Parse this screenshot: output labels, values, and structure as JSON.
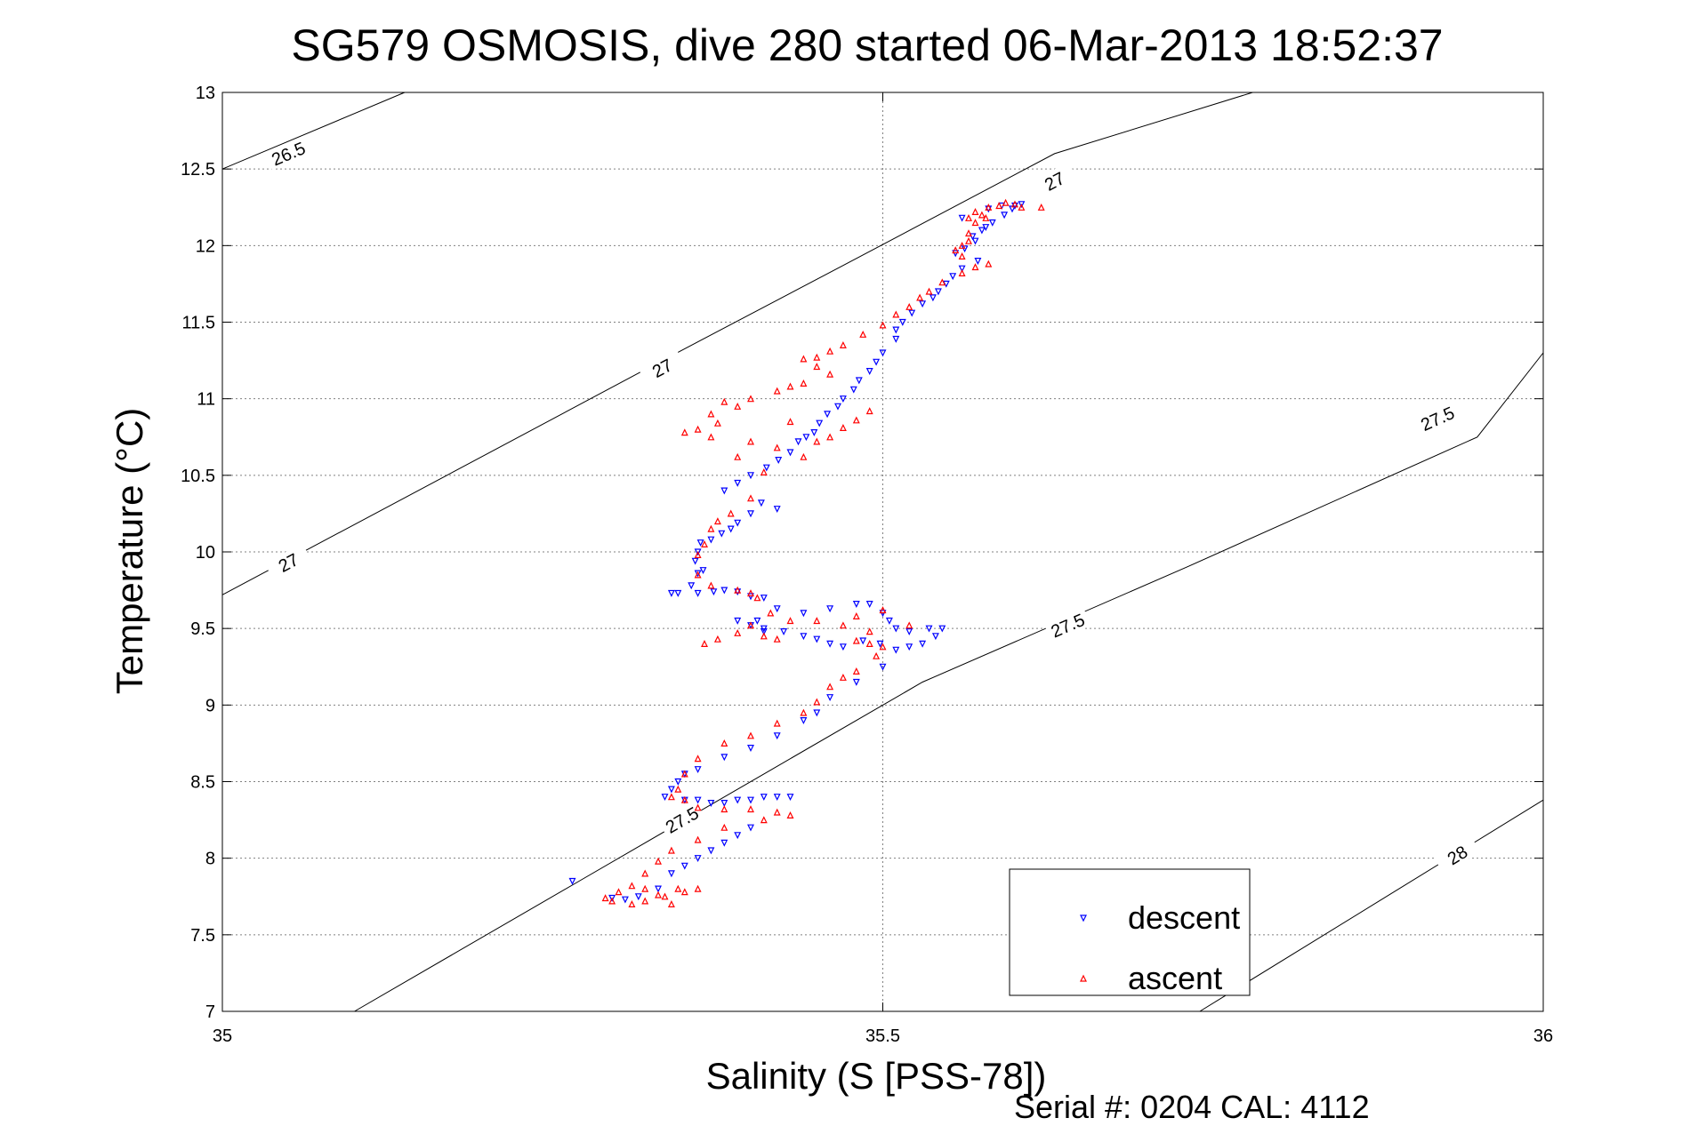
{
  "chart_data": {
    "type": "scatter",
    "title": "SG579 OSMOSIS, dive 280 started 06-Mar-2013 18:52:37",
    "xlabel": "Salinity (S [PSS-78])",
    "ylabel": "Temperature (°C)",
    "footer": "Serial #: 0204  CAL: 4112",
    "xlim": [
      35,
      36
    ],
    "ylim": [
      7,
      13
    ],
    "xticks": [
      35,
      35.5,
      36
    ],
    "xtick_labels": [
      "35",
      "35.5",
      "36"
    ],
    "yticks": [
      7,
      7.5,
      8,
      8.5,
      9,
      9.5,
      10,
      10.5,
      11,
      11.5,
      12,
      12.5,
      13
    ],
    "ytick_labels": [
      "7",
      "7.5",
      "8",
      "8.5",
      "9",
      "9.5",
      "10",
      "10.5",
      "11",
      "11.5",
      "12",
      "12.5",
      "13"
    ],
    "grid": true,
    "legend_position": "bottom-right",
    "density_contours": [
      {
        "label": "26.5",
        "points": [
          [
            35,
            12.5
          ],
          [
            35.138,
            13
          ]
        ],
        "label_points": [
          [
            35.05,
            12.6
          ]
        ]
      },
      {
        "label": "27",
        "points": [
          [
            35,
            9.72
          ],
          [
            35.17,
            10.5
          ],
          [
            35.32,
            11.19
          ],
          [
            35.47,
            11.87
          ],
          [
            35.63,
            12.6
          ],
          [
            35.78,
            13
          ]
        ],
        "label_points": [
          [
            35.05,
            9.93
          ],
          [
            35.333,
            11.2
          ],
          [
            35.63,
            12.42
          ]
        ]
      },
      {
        "label": "27.5",
        "points": [
          [
            35.1,
            7
          ],
          [
            35.27,
            7.85
          ],
          [
            35.41,
            8.55
          ],
          [
            35.53,
            9.15
          ],
          [
            35.73,
            9.9
          ],
          [
            35.95,
            10.75
          ],
          [
            36,
            11.3
          ]
        ],
        "label_points": [
          [
            35.348,
            8.25
          ],
          [
            35.64,
            9.52
          ],
          [
            35.92,
            10.87
          ]
        ]
      },
      {
        "label": "28",
        "points": [
          [
            35.74,
            7
          ],
          [
            36,
            8.38
          ]
        ],
        "label_points": [
          [
            35.935,
            8.02
          ]
        ]
      }
    ],
    "series": [
      {
        "name": "descent",
        "color": "#0000ff",
        "marker": "triangle-down",
        "points": [
          [
            35.605,
            12.27
          ],
          [
            35.598,
            12.24
          ],
          [
            35.592,
            12.2
          ],
          [
            35.583,
            12.15
          ],
          [
            35.575,
            12.1
          ],
          [
            35.568,
            12.06
          ],
          [
            35.578,
            12.12
          ],
          [
            35.57,
            12.03
          ],
          [
            35.562,
            11.98
          ],
          [
            35.555,
            11.95
          ],
          [
            35.572,
            11.9
          ],
          [
            35.56,
            11.85
          ],
          [
            35.553,
            11.8
          ],
          [
            35.548,
            11.75
          ],
          [
            35.542,
            11.7
          ],
          [
            35.538,
            11.66
          ],
          [
            35.53,
            11.62
          ],
          [
            35.522,
            11.56
          ],
          [
            35.515,
            11.5
          ],
          [
            35.51,
            11.45
          ],
          [
            35.51,
            11.39
          ],
          [
            35.5,
            11.3
          ],
          [
            35.495,
            11.24
          ],
          [
            35.49,
            11.18
          ],
          [
            35.482,
            11.12
          ],
          [
            35.478,
            11.06
          ],
          [
            35.47,
            11.0
          ],
          [
            35.466,
            10.95
          ],
          [
            35.458,
            10.9
          ],
          [
            35.452,
            10.84
          ],
          [
            35.448,
            10.78
          ],
          [
            35.442,
            10.75
          ],
          [
            35.436,
            10.72
          ],
          [
            35.43,
            10.65
          ],
          [
            35.421,
            10.6
          ],
          [
            35.412,
            10.55
          ],
          [
            35.4,
            10.5
          ],
          [
            35.39,
            10.45
          ],
          [
            35.38,
            10.4
          ],
          [
            35.42,
            10.28
          ],
          [
            35.408,
            10.32
          ],
          [
            35.4,
            10.25
          ],
          [
            35.39,
            10.19
          ],
          [
            35.385,
            10.15
          ],
          [
            35.378,
            10.12
          ],
          [
            35.37,
            10.08
          ],
          [
            35.362,
            10.06
          ],
          [
            35.36,
            10.0
          ],
          [
            35.358,
            9.94
          ],
          [
            35.364,
            9.88
          ],
          [
            35.36,
            9.86
          ],
          [
            35.355,
            9.78
          ],
          [
            35.36,
            9.73
          ],
          [
            35.345,
            9.73
          ],
          [
            35.34,
            9.73
          ],
          [
            35.372,
            9.74
          ],
          [
            35.38,
            9.75
          ],
          [
            35.39,
            9.74
          ],
          [
            35.4,
            9.71
          ],
          [
            35.41,
            9.7
          ],
          [
            35.42,
            9.63
          ],
          [
            35.44,
            9.6
          ],
          [
            35.46,
            9.63
          ],
          [
            35.48,
            9.66
          ],
          [
            35.49,
            9.66
          ],
          [
            35.5,
            9.6
          ],
          [
            35.505,
            9.55
          ],
          [
            35.51,
            9.5
          ],
          [
            35.52,
            9.48
          ],
          [
            35.535,
            9.5
          ],
          [
            35.545,
            9.5
          ],
          [
            35.54,
            9.45
          ],
          [
            35.53,
            9.4
          ],
          [
            35.52,
            9.38
          ],
          [
            35.51,
            9.36
          ],
          [
            35.498,
            9.4
          ],
          [
            35.485,
            9.42
          ],
          [
            35.47,
            9.38
          ],
          [
            35.46,
            9.4
          ],
          [
            35.45,
            9.43
          ],
          [
            35.44,
            9.45
          ],
          [
            35.425,
            9.48
          ],
          [
            35.41,
            9.5
          ],
          [
            35.4,
            9.52
          ],
          [
            35.39,
            9.55
          ],
          [
            35.405,
            9.55
          ],
          [
            35.41,
            9.48
          ],
          [
            35.5,
            9.25
          ],
          [
            35.48,
            9.15
          ],
          [
            35.46,
            9.05
          ],
          [
            35.45,
            8.95
          ],
          [
            35.44,
            8.9
          ],
          [
            35.42,
            8.8
          ],
          [
            35.4,
            8.72
          ],
          [
            35.38,
            8.66
          ],
          [
            35.36,
            8.58
          ],
          [
            35.35,
            8.55
          ],
          [
            35.345,
            8.5
          ],
          [
            35.34,
            8.45
          ],
          [
            35.335,
            8.4
          ],
          [
            35.35,
            8.38
          ],
          [
            35.36,
            8.38
          ],
          [
            35.37,
            8.36
          ],
          [
            35.38,
            8.36
          ],
          [
            35.39,
            8.38
          ],
          [
            35.4,
            8.38
          ],
          [
            35.41,
            8.4
          ],
          [
            35.42,
            8.4
          ],
          [
            35.43,
            8.4
          ],
          [
            35.4,
            8.2
          ],
          [
            35.39,
            8.15
          ],
          [
            35.38,
            8.1
          ],
          [
            35.37,
            8.05
          ],
          [
            35.36,
            8.0
          ],
          [
            35.35,
            7.95
          ],
          [
            35.34,
            7.9
          ],
          [
            35.33,
            7.8
          ],
          [
            35.315,
            7.75
          ],
          [
            35.305,
            7.73
          ],
          [
            35.295,
            7.74
          ],
          [
            35.265,
            7.85
          ],
          [
            35.56,
            12.18
          ],
          [
            35.58,
            12.24
          ],
          [
            35.59,
            12.26
          ],
          [
            35.6,
            12.26
          ]
        ]
      },
      {
        "name": "ascent",
        "color": "#ff0000",
        "marker": "triangle-up",
        "points": [
          [
            35.605,
            12.25
          ],
          [
            35.6,
            12.27
          ],
          [
            35.593,
            12.28
          ],
          [
            35.588,
            12.26
          ],
          [
            35.58,
            12.25
          ],
          [
            35.575,
            12.2
          ],
          [
            35.57,
            12.22
          ],
          [
            35.565,
            12.18
          ],
          [
            35.57,
            12.15
          ],
          [
            35.578,
            12.18
          ],
          [
            35.62,
            12.25
          ],
          [
            35.565,
            12.08
          ],
          [
            35.565,
            12.03
          ],
          [
            35.56,
            12.0
          ],
          [
            35.555,
            11.97
          ],
          [
            35.56,
            11.93
          ],
          [
            35.58,
            11.88
          ],
          [
            35.57,
            11.86
          ],
          [
            35.56,
            11.82
          ],
          [
            35.545,
            11.76
          ],
          [
            35.535,
            11.7
          ],
          [
            35.528,
            11.66
          ],
          [
            35.52,
            11.6
          ],
          [
            35.51,
            11.55
          ],
          [
            35.5,
            11.48
          ],
          [
            35.485,
            11.42
          ],
          [
            35.47,
            11.35
          ],
          [
            35.46,
            11.31
          ],
          [
            35.45,
            11.27
          ],
          [
            35.44,
            11.26
          ],
          [
            35.45,
            11.21
          ],
          [
            35.46,
            11.16
          ],
          [
            35.44,
            11.1
          ],
          [
            35.43,
            11.08
          ],
          [
            35.42,
            11.05
          ],
          [
            35.4,
            11.0
          ],
          [
            35.38,
            10.98
          ],
          [
            35.39,
            10.95
          ],
          [
            35.37,
            10.9
          ],
          [
            35.375,
            10.84
          ],
          [
            35.36,
            10.8
          ],
          [
            35.35,
            10.78
          ],
          [
            35.37,
            10.75
          ],
          [
            35.4,
            10.72
          ],
          [
            35.42,
            10.68
          ],
          [
            35.44,
            10.62
          ],
          [
            35.46,
            10.75
          ],
          [
            35.47,
            10.81
          ],
          [
            35.48,
            10.86
          ],
          [
            35.49,
            10.92
          ],
          [
            35.43,
            10.85
          ],
          [
            35.45,
            10.72
          ],
          [
            35.39,
            10.62
          ],
          [
            35.41,
            10.52
          ],
          [
            35.4,
            10.35
          ],
          [
            35.385,
            10.25
          ],
          [
            35.375,
            10.2
          ],
          [
            35.37,
            10.15
          ],
          [
            35.365,
            10.05
          ],
          [
            35.36,
            9.98
          ],
          [
            35.36,
            9.85
          ],
          [
            35.37,
            9.78
          ],
          [
            35.39,
            9.75
          ],
          [
            35.4,
            9.73
          ],
          [
            35.405,
            9.7
          ],
          [
            35.415,
            9.6
          ],
          [
            35.43,
            9.55
          ],
          [
            35.45,
            9.55
          ],
          [
            35.47,
            9.52
          ],
          [
            35.48,
            9.58
          ],
          [
            35.5,
            9.62
          ],
          [
            35.52,
            9.52
          ],
          [
            35.49,
            9.48
          ],
          [
            35.48,
            9.42
          ],
          [
            35.49,
            9.4
          ],
          [
            35.5,
            9.38
          ],
          [
            35.495,
            9.32
          ],
          [
            35.42,
            9.43
          ],
          [
            35.41,
            9.45
          ],
          [
            35.39,
            9.47
          ],
          [
            35.375,
            9.43
          ],
          [
            35.365,
            9.4
          ],
          [
            35.4,
            9.52
          ],
          [
            35.48,
            9.22
          ],
          [
            35.47,
            9.18
          ],
          [
            35.46,
            9.12
          ],
          [
            35.45,
            9.02
          ],
          [
            35.44,
            8.95
          ],
          [
            35.42,
            8.88
          ],
          [
            35.4,
            8.8
          ],
          [
            35.38,
            8.75
          ],
          [
            35.36,
            8.65
          ],
          [
            35.35,
            8.55
          ],
          [
            35.345,
            8.45
          ],
          [
            35.34,
            8.4
          ],
          [
            35.35,
            8.38
          ],
          [
            35.36,
            8.33
          ],
          [
            35.38,
            8.32
          ],
          [
            35.4,
            8.32
          ],
          [
            35.42,
            8.3
          ],
          [
            35.43,
            8.28
          ],
          [
            35.41,
            8.25
          ],
          [
            35.38,
            8.2
          ],
          [
            35.36,
            8.12
          ],
          [
            35.34,
            8.05
          ],
          [
            35.33,
            7.98
          ],
          [
            35.32,
            7.9
          ],
          [
            35.31,
            7.82
          ],
          [
            35.3,
            7.78
          ],
          [
            35.29,
            7.74
          ],
          [
            35.32,
            7.72
          ],
          [
            35.335,
            7.75
          ],
          [
            35.35,
            7.78
          ],
          [
            35.36,
            7.8
          ],
          [
            35.34,
            7.7
          ],
          [
            35.31,
            7.7
          ],
          [
            35.295,
            7.72
          ],
          [
            35.32,
            7.8
          ],
          [
            35.345,
            7.8
          ],
          [
            35.33,
            7.76
          ]
        ]
      }
    ]
  }
}
